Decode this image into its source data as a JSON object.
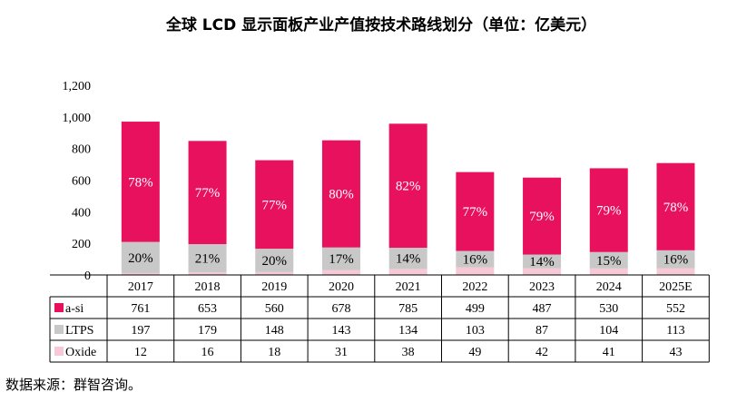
{
  "chart_data": {
    "type": "bar",
    "stacked": true,
    "title": "全球 LCD 显示面板产业产值按技术路线划分（单位：亿美元）",
    "categories": [
      "2017",
      "2018",
      "2019",
      "2020",
      "2021",
      "2022",
      "2023",
      "2024",
      "2025E"
    ],
    "ylim": [
      0,
      1200
    ],
    "yticks": [
      "0",
      "200",
      "400",
      "600",
      "800",
      "1,000",
      "1,200"
    ],
    "ytick_values": [
      0,
      200,
      400,
      600,
      800,
      1000,
      1200
    ],
    "series": [
      {
        "name": "Oxide",
        "color": "#f7c8d6",
        "values": [
          12,
          16,
          18,
          31,
          38,
          49,
          42,
          41,
          43
        ]
      },
      {
        "name": "LTPS",
        "color": "#c8c8c8",
        "values": [
          197,
          179,
          148,
          143,
          134,
          103,
          87,
          104,
          113
        ],
        "pct_labels": [
          "20%",
          "21%",
          "20%",
          "17%",
          "14%",
          "16%",
          "14%",
          "15%",
          "16%"
        ]
      },
      {
        "name": "a-si",
        "color": "#e8115e",
        "values": [
          761,
          653,
          560,
          678,
          785,
          499,
          487,
          530,
          552
        ],
        "pct_labels": [
          "78%",
          "77%",
          "77%",
          "80%",
          "82%",
          "77%",
          "79%",
          "79%",
          "78%"
        ]
      }
    ],
    "table_rows": [
      {
        "name": "a-si",
        "color": "#e8115e",
        "values": [
          "761",
          "653",
          "560",
          "678",
          "785",
          "499",
          "487",
          "530",
          "552"
        ]
      },
      {
        "name": "LTPS",
        "color": "#c8c8c8",
        "values": [
          "197",
          "179",
          "148",
          "143",
          "134",
          "103",
          "87",
          "104",
          "113"
        ]
      },
      {
        "name": "Oxide",
        "color": "#f7c8d6",
        "values": [
          "12",
          "16",
          "18",
          "31",
          "38",
          "49",
          "42",
          "41",
          "43"
        ]
      }
    ]
  },
  "source": "数据来源：群智咨询。"
}
